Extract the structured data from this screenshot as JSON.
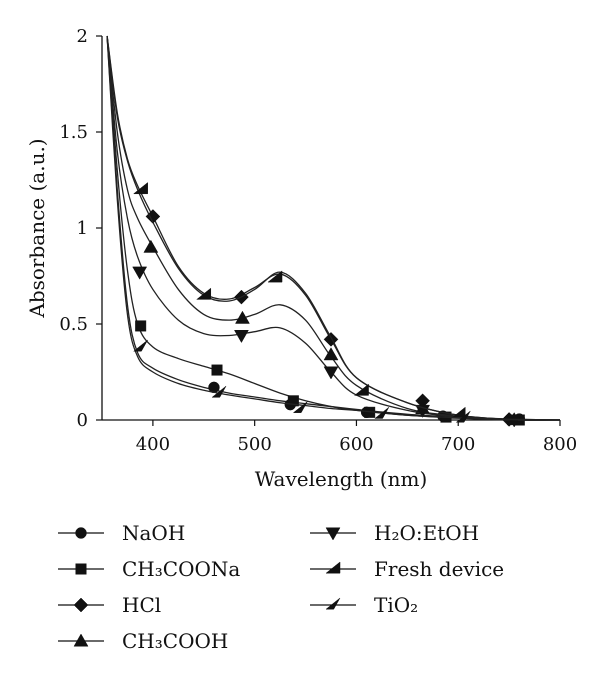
{
  "chart_data": {
    "type": "line",
    "xlabel": "Wavelength (nm)",
    "ylabel": "Absorbance (a.u.)",
    "xlim": [
      350,
      800
    ],
    "ylim": [
      0,
      2
    ],
    "xticks": [
      "400",
      "500",
      "600",
      "700",
      "800"
    ],
    "yticks": [
      "0",
      "0.5",
      "1",
      "1.5",
      "2"
    ],
    "grid": false,
    "legend_position": "bottom",
    "series": [
      {
        "name": "NaOH",
        "marker": "circle",
        "x": [
          355,
          365,
          375,
          385,
          400,
          425,
          450,
          475,
          500,
          525,
          550,
          575,
          600,
          650,
          700,
          750,
          800
        ],
        "y": [
          2.0,
          1.2,
          0.6,
          0.35,
          0.27,
          0.21,
          0.17,
          0.14,
          0.12,
          0.1,
          0.085,
          0.07,
          0.055,
          0.03,
          0.015,
          0.005,
          0.0
        ],
        "marker_x": [
          460,
          535,
          610,
          685,
          760
        ],
        "marker_y": [
          0.17,
          0.08,
          0.04,
          0.02,
          0.005
        ]
      },
      {
        "name": "CH₃COONa",
        "marker": "square",
        "x": [
          355,
          365,
          375,
          385,
          400,
          425,
          450,
          475,
          500,
          525,
          550,
          575,
          600,
          650,
          700,
          750,
          800
        ],
        "y": [
          2.0,
          1.3,
          0.78,
          0.5,
          0.38,
          0.32,
          0.28,
          0.24,
          0.19,
          0.14,
          0.1,
          0.07,
          0.05,
          0.025,
          0.01,
          0.0,
          0.0
        ],
        "marker_x": [
          388,
          463,
          538,
          613,
          688,
          760
        ],
        "marker_y": [
          0.49,
          0.26,
          0.1,
          0.04,
          0.015,
          0.0
        ]
      },
      {
        "name": "HCl",
        "marker": "diamond",
        "x": [
          355,
          365,
          375,
          385,
          400,
          425,
          450,
          475,
          500,
          525,
          550,
          575,
          600,
          650,
          700,
          750,
          800
        ],
        "y": [
          2.0,
          1.6,
          1.36,
          1.22,
          1.06,
          0.8,
          0.66,
          0.63,
          0.69,
          0.76,
          0.65,
          0.42,
          0.22,
          0.09,
          0.025,
          0.003,
          0.0
        ],
        "marker_x": [
          400,
          487,
          575,
          665,
          750
        ],
        "marker_y": [
          1.06,
          0.64,
          0.42,
          0.1,
          0.003
        ]
      },
      {
        "name": "CH₃COOH",
        "marker": "triangle-up",
        "x": [
          355,
          365,
          375,
          385,
          400,
          425,
          450,
          475,
          500,
          525,
          550,
          575,
          600,
          650,
          700,
          750,
          800
        ],
        "y": [
          2.0,
          1.5,
          1.2,
          1.05,
          0.9,
          0.68,
          0.55,
          0.52,
          0.55,
          0.6,
          0.52,
          0.33,
          0.18,
          0.06,
          0.02,
          0.002,
          0.0
        ],
        "marker_x": [
          398,
          488,
          575,
          665,
          755
        ],
        "marker_y": [
          0.9,
          0.53,
          0.34,
          0.06,
          0.002
        ]
      },
      {
        "name": "H₂O:EtOH",
        "marker": "triangle-down",
        "x": [
          355,
          365,
          375,
          385,
          400,
          425,
          450,
          475,
          500,
          525,
          550,
          575,
          600,
          650,
          700,
          750,
          800
        ],
        "y": [
          2.0,
          1.4,
          1.05,
          0.85,
          0.68,
          0.52,
          0.45,
          0.44,
          0.46,
          0.48,
          0.4,
          0.25,
          0.13,
          0.05,
          0.015,
          0.0,
          0.0
        ],
        "marker_x": [
          387,
          487,
          575,
          665,
          755
        ],
        "marker_y": [
          0.77,
          0.44,
          0.25,
          0.05,
          0.0
        ]
      },
      {
        "name": "Fresh device",
        "marker": "triangle-left",
        "x": [
          355,
          365,
          375,
          385,
          400,
          425,
          450,
          475,
          500,
          525,
          550,
          575,
          600,
          650,
          700,
          750,
          800
        ],
        "y": [
          2.0,
          1.58,
          1.35,
          1.2,
          1.03,
          0.79,
          0.65,
          0.62,
          0.68,
          0.77,
          0.66,
          0.43,
          0.22,
          0.09,
          0.025,
          0.003,
          0.0
        ],
        "marker_x": [
          388,
          450,
          520,
          605,
          700
        ],
        "marker_y": [
          1.2,
          0.65,
          0.74,
          0.15,
          0.03
        ]
      },
      {
        "name": "TiO₂",
        "marker": "triangle-right",
        "x": [
          355,
          365,
          375,
          385,
          400,
          425,
          450,
          475,
          500,
          525,
          550,
          575,
          600,
          650,
          700,
          750,
          800
        ],
        "y": [
          2.0,
          1.15,
          0.55,
          0.33,
          0.25,
          0.19,
          0.155,
          0.13,
          0.11,
          0.09,
          0.075,
          0.06,
          0.05,
          0.025,
          0.012,
          0.004,
          0.0
        ],
        "marker_x": [
          388,
          465,
          545,
          625,
          705
        ],
        "marker_y": [
          0.38,
          0.14,
          0.06,
          0.03,
          0.01
        ]
      }
    ]
  }
}
